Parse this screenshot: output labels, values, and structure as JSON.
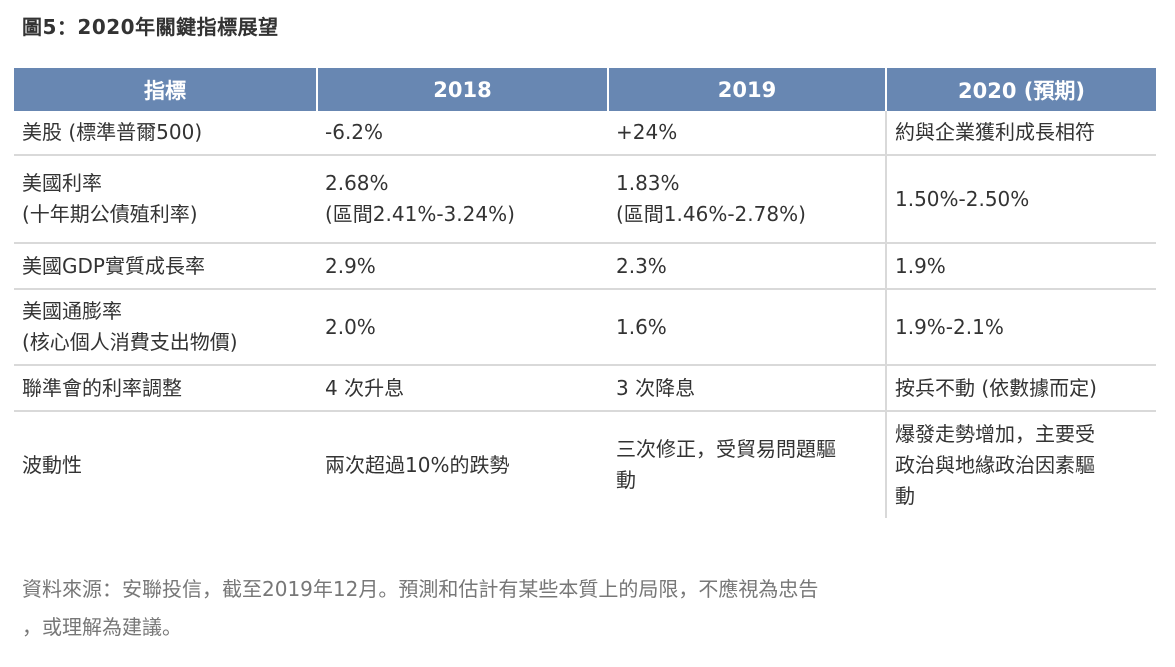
{
  "title": "圖5：2020年關鍵指標展望",
  "table": {
    "headers": [
      "指標",
      "2018",
      "2019",
      "2020 (預期)"
    ],
    "rows": [
      {
        "indicator": [
          "美股 (標準普爾500)"
        ],
        "y2018": [
          "-6.2%"
        ],
        "y2019": [
          "+24%"
        ],
        "y2020": [
          "約與企業獲利成長相符"
        ]
      },
      {
        "indicator": [
          "美國利率",
          "(十年期公債殖利率)"
        ],
        "y2018": [
          "2.68%",
          "(區間2.41%-3.24%)"
        ],
        "y2019": [
          "1.83%",
          "(區間1.46%-2.78%)"
        ],
        "y2020": [
          "1.50%-2.50%"
        ]
      },
      {
        "indicator": [
          "美國GDP實質成長率"
        ],
        "y2018": [
          "2.9%"
        ],
        "y2019": [
          "2.3%"
        ],
        "y2020": [
          "1.9%"
        ]
      },
      {
        "indicator": [
          "美國通膨率",
          "(核心個人消費支出物價)"
        ],
        "y2018": [
          "2.0%"
        ],
        "y2019": [
          "1.6%"
        ],
        "y2020": [
          "1.9%-2.1%"
        ]
      },
      {
        "indicator": [
          "聯準會的利率調整"
        ],
        "y2018": [
          "4 次升息"
        ],
        "y2019": [
          "3 次降息"
        ],
        "y2020": [
          "按兵不動 (依數據而定)"
        ]
      },
      {
        "indicator": [
          "波動性"
        ],
        "y2018": [
          "兩次超過10%的跌勢"
        ],
        "y2019": [
          "三次修正，受貿易問題驅",
          "動"
        ],
        "y2020": [
          "爆發走勢增加，主要受",
          "政治與地緣政治因素驅",
          "動"
        ]
      }
    ]
  },
  "source": {
    "lines": [
      "資料來源：安聯投信，截至2019年12月。預測和估計有某些本質上的局限，不應視為忠告",
      "，或理解為建議。"
    ]
  },
  "colors": {
    "header_bg": "#6887b2",
    "header_text": "#ffffff",
    "row_divider": "#d9d9d9",
    "body_text": "#333333",
    "note_text": "#777777"
  }
}
